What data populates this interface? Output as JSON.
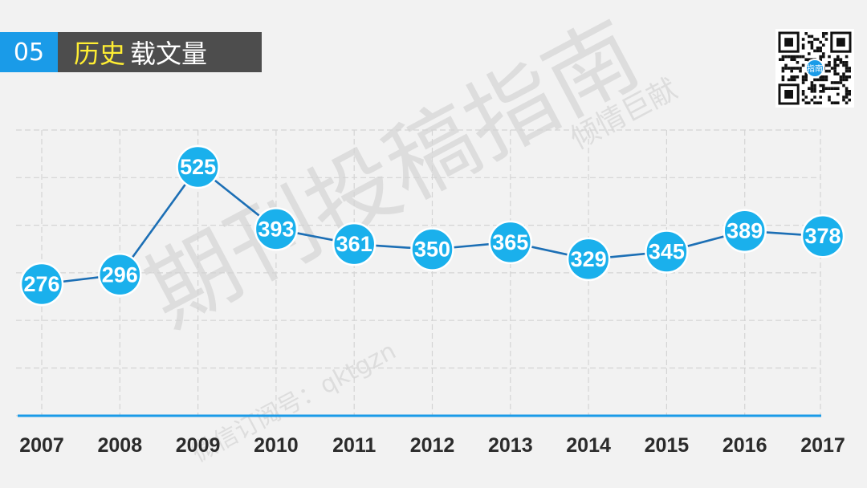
{
  "header": {
    "number": "05",
    "title_highlight": "历史",
    "title_rest": "载文量"
  },
  "watermark": {
    "main": "期刊投稿指南",
    "top": "倾情巨献",
    "sub": "微信订阅号：qktgzn"
  },
  "qr": {
    "icon": "qr-code-icon",
    "center_text": "指南"
  },
  "colors": {
    "accent": "#1a9be8",
    "line": "#1c6fb5",
    "marker": "#1ab0ec",
    "header_dark": "#4d4d4d",
    "highlight": "#ffee33"
  },
  "chart_data": {
    "type": "line",
    "title": "",
    "xlabel": "",
    "ylabel": "",
    "categories": [
      "2007",
      "2008",
      "2009",
      "2010",
      "2011",
      "2012",
      "2013",
      "2014",
      "2015",
      "2016",
      "2017"
    ],
    "values": [
      276,
      296,
      525,
      393,
      361,
      350,
      365,
      329,
      345,
      389,
      378
    ],
    "ylim": [
      0,
      600
    ],
    "grid": true,
    "data_labels": true
  }
}
